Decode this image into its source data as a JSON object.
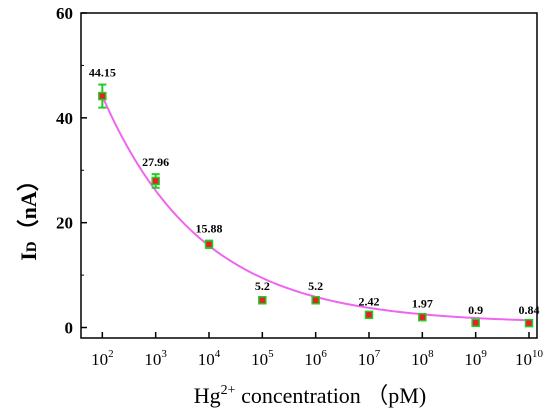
{
  "chart_data": {
    "type": "scatter",
    "x_scale": "log",
    "x": [
      "10^2",
      "10^3",
      "10^4",
      "10^5",
      "10^6",
      "10^7",
      "10^8",
      "10^9",
      "10^10"
    ],
    "x_exponents": [
      2,
      3,
      4,
      5,
      6,
      7,
      8,
      9,
      10
    ],
    "values": [
      44.15,
      27.96,
      15.88,
      5.2,
      5.2,
      2.42,
      1.97,
      0.9,
      0.84
    ],
    "data_labels": [
      "44.15",
      "27.96",
      "15.88",
      "5.2",
      "5.2",
      "2.42",
      "1.97",
      "0.9",
      "0.84"
    ],
    "error": [
      2.2,
      1.3,
      0.7,
      0.4,
      0.4,
      0.3,
      0.3,
      0.2,
      0.2
    ],
    "fit_line": true,
    "title": "",
    "xlabel_main": "Hg",
    "xlabel_sup": "2+",
    "xlabel_rest": " concentration （pM)",
    "ylabel_main": "I",
    "ylabel_sub": "D",
    "ylabel_rest": "（nA）",
    "ylim": [
      -2,
      60
    ],
    "yticks": [
      0,
      20,
      40,
      60
    ],
    "xlim": [
      1.6,
      10.15
    ],
    "grid": false,
    "legend": "none",
    "colors": {
      "marker": "#e8202a",
      "error_bar": "#22cc22",
      "fit": "#ee66ee",
      "axis": "#000000"
    }
  }
}
